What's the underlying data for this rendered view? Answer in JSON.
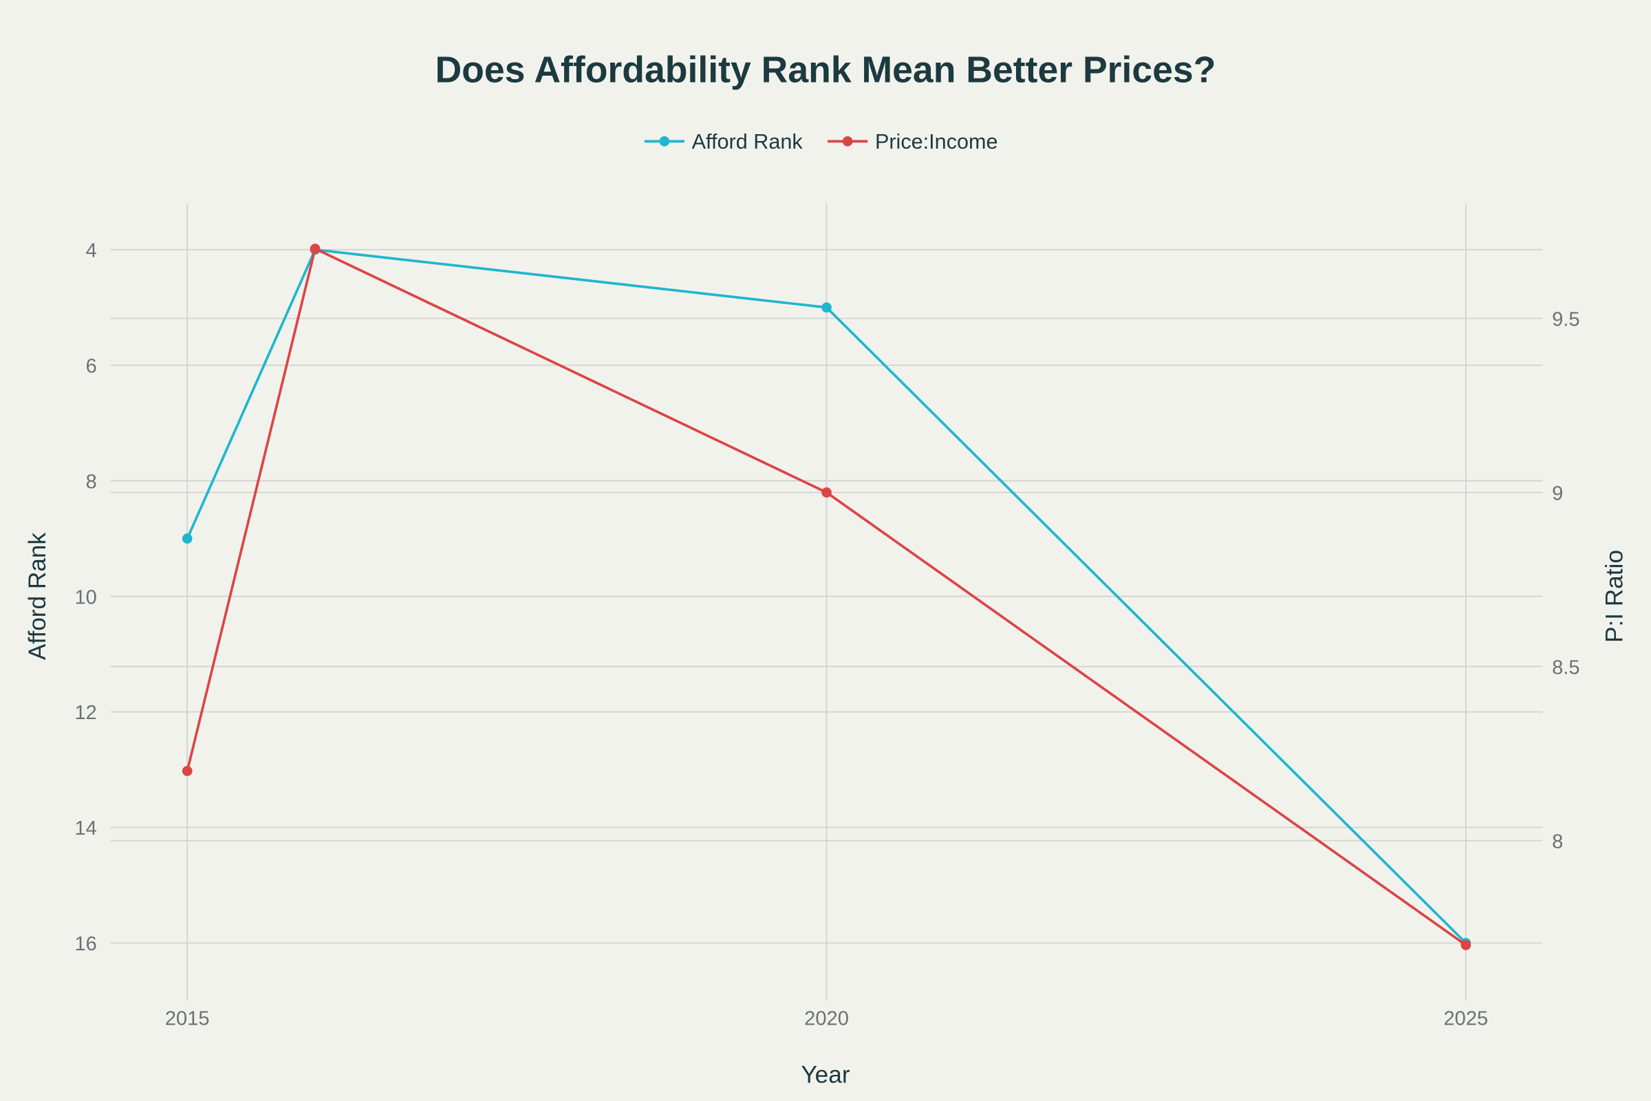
{
  "chart_data": {
    "type": "line",
    "title": "Does Affordability Rank Mean Better Prices?",
    "xlabel": "Year",
    "ylabel": "Afford Rank",
    "y2label": "P:I Ratio",
    "x": [
      2015,
      2016,
      2020,
      2025
    ],
    "x_ticks": [
      "2015",
      "2020",
      "2025"
    ],
    "y_ticks": [
      "4",
      "6",
      "8",
      "10",
      "12",
      "14",
      "16"
    ],
    "y2_ticks": [
      "8",
      "8.5",
      "9",
      "9.5"
    ],
    "xlim": [
      2014.4,
      2025.6
    ],
    "ylim": [
      17.0,
      3.2
    ],
    "y_reversed": true,
    "y2lim": [
      7.54,
      9.83
    ],
    "grid": true,
    "legend_position": "top-center",
    "series": [
      {
        "name": "Afford Rank",
        "axis": "left",
        "color": "#1fb6cf",
        "values": [
          9,
          4,
          5,
          16
        ]
      },
      {
        "name": "Price:Income",
        "axis": "right",
        "color": "#dc4545",
        "values": [
          8.2,
          9.7,
          9.0,
          7.7
        ]
      }
    ]
  }
}
